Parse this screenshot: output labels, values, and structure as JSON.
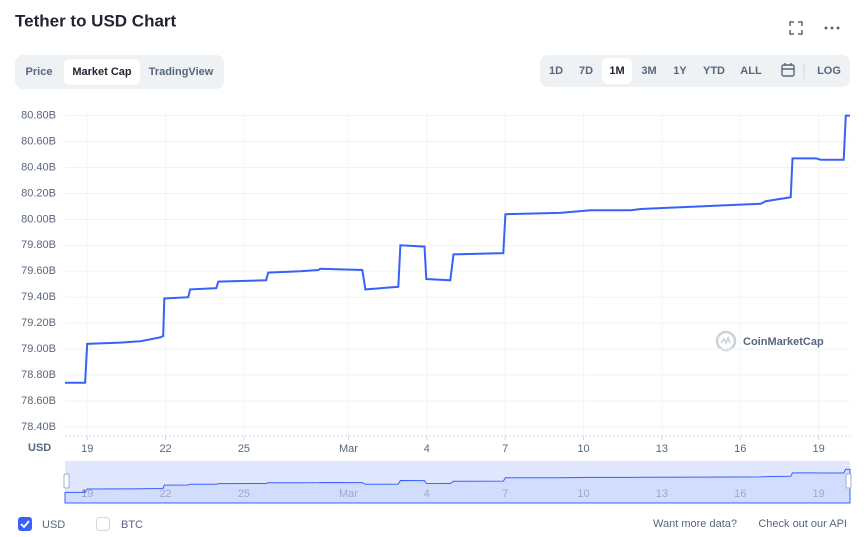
{
  "header": {
    "title": "Tether to USD Chart"
  },
  "tabs": [
    "Price",
    "Market Cap",
    "TradingView"
  ],
  "active_tab": 1,
  "ranges": [
    "1D",
    "7D",
    "1M",
    "3M",
    "1Y",
    "YTD",
    "ALL"
  ],
  "active_range": 2,
  "log_label": "LOG",
  "chart_data": {
    "type": "line",
    "y_unit_label": "USD",
    "watermark": "CoinMarketCap",
    "x": [
      0.15,
      0.92,
      1.0,
      2.26,
      3.03,
      3.79,
      3.91,
      3.95,
      4.87,
      4.94,
      5.94,
      6.02,
      7.85,
      7.93,
      9.16,
      9.85,
      9.92,
      11.53,
      11.65,
      12.91,
      12.99,
      13.91,
      13.98,
      14.9,
      15.02,
      16.93,
      17.01,
      19.1,
      20.27,
      21.8,
      22.18,
      24.48,
      26.78,
      26.97,
      27.93,
      28.0,
      28.9,
      29.08,
      29.96,
      30.04,
      30.2
    ],
    "series": [
      {
        "name": "USD",
        "color": "#3861fb",
        "values": [
          78.74,
          78.74,
          79.04,
          79.05,
          79.06,
          79.09,
          79.1,
          79.39,
          79.4,
          79.46,
          79.47,
          79.52,
          79.53,
          79.59,
          79.6,
          79.61,
          79.62,
          79.61,
          79.46,
          79.48,
          79.8,
          79.79,
          79.54,
          79.53,
          79.73,
          79.74,
          80.04,
          80.05,
          80.07,
          80.07,
          80.08,
          80.1,
          80.12,
          80.14,
          80.17,
          80.47,
          80.47,
          80.46,
          80.46,
          80.8,
          80.8
        ]
      }
    ],
    "unselected_legend": [
      "BTC"
    ],
    "xlim": [
      0.15,
      30.2
    ],
    "xticks": [
      {
        "value": 1,
        "label": "19"
      },
      {
        "value": 4,
        "label": "22"
      },
      {
        "value": 7,
        "label": "25"
      },
      {
        "value": 11,
        "label": "Mar"
      },
      {
        "value": 14,
        "label": "4"
      },
      {
        "value": 17,
        "label": "7"
      },
      {
        "value": 20,
        "label": "10"
      },
      {
        "value": 23,
        "label": "13"
      },
      {
        "value": 26,
        "label": "16"
      },
      {
        "value": 29,
        "label": "19"
      }
    ],
    "ylim": [
      78.33,
      80.82
    ],
    "yticks": [
      {
        "value": 78.4,
        "label": "78.40B"
      },
      {
        "value": 78.6,
        "label": "78.60B"
      },
      {
        "value": 78.8,
        "label": "78.80B"
      },
      {
        "value": 79.0,
        "label": "79.00B"
      },
      {
        "value": 79.2,
        "label": "79.20B"
      },
      {
        "value": 79.4,
        "label": "79.40B"
      },
      {
        "value": 79.6,
        "label": "79.60B"
      },
      {
        "value": 79.8,
        "label": "79.80B"
      },
      {
        "value": 80.0,
        "label": "80.00B"
      },
      {
        "value": 80.2,
        "label": "80.20B"
      },
      {
        "value": 80.4,
        "label": "80.40B"
      },
      {
        "value": 80.6,
        "label": "80.60B"
      },
      {
        "value": 80.8,
        "label": "80.80B"
      }
    ],
    "grid": true
  },
  "footer": {
    "prompt": "Want more data?",
    "link": "Check out our API"
  }
}
